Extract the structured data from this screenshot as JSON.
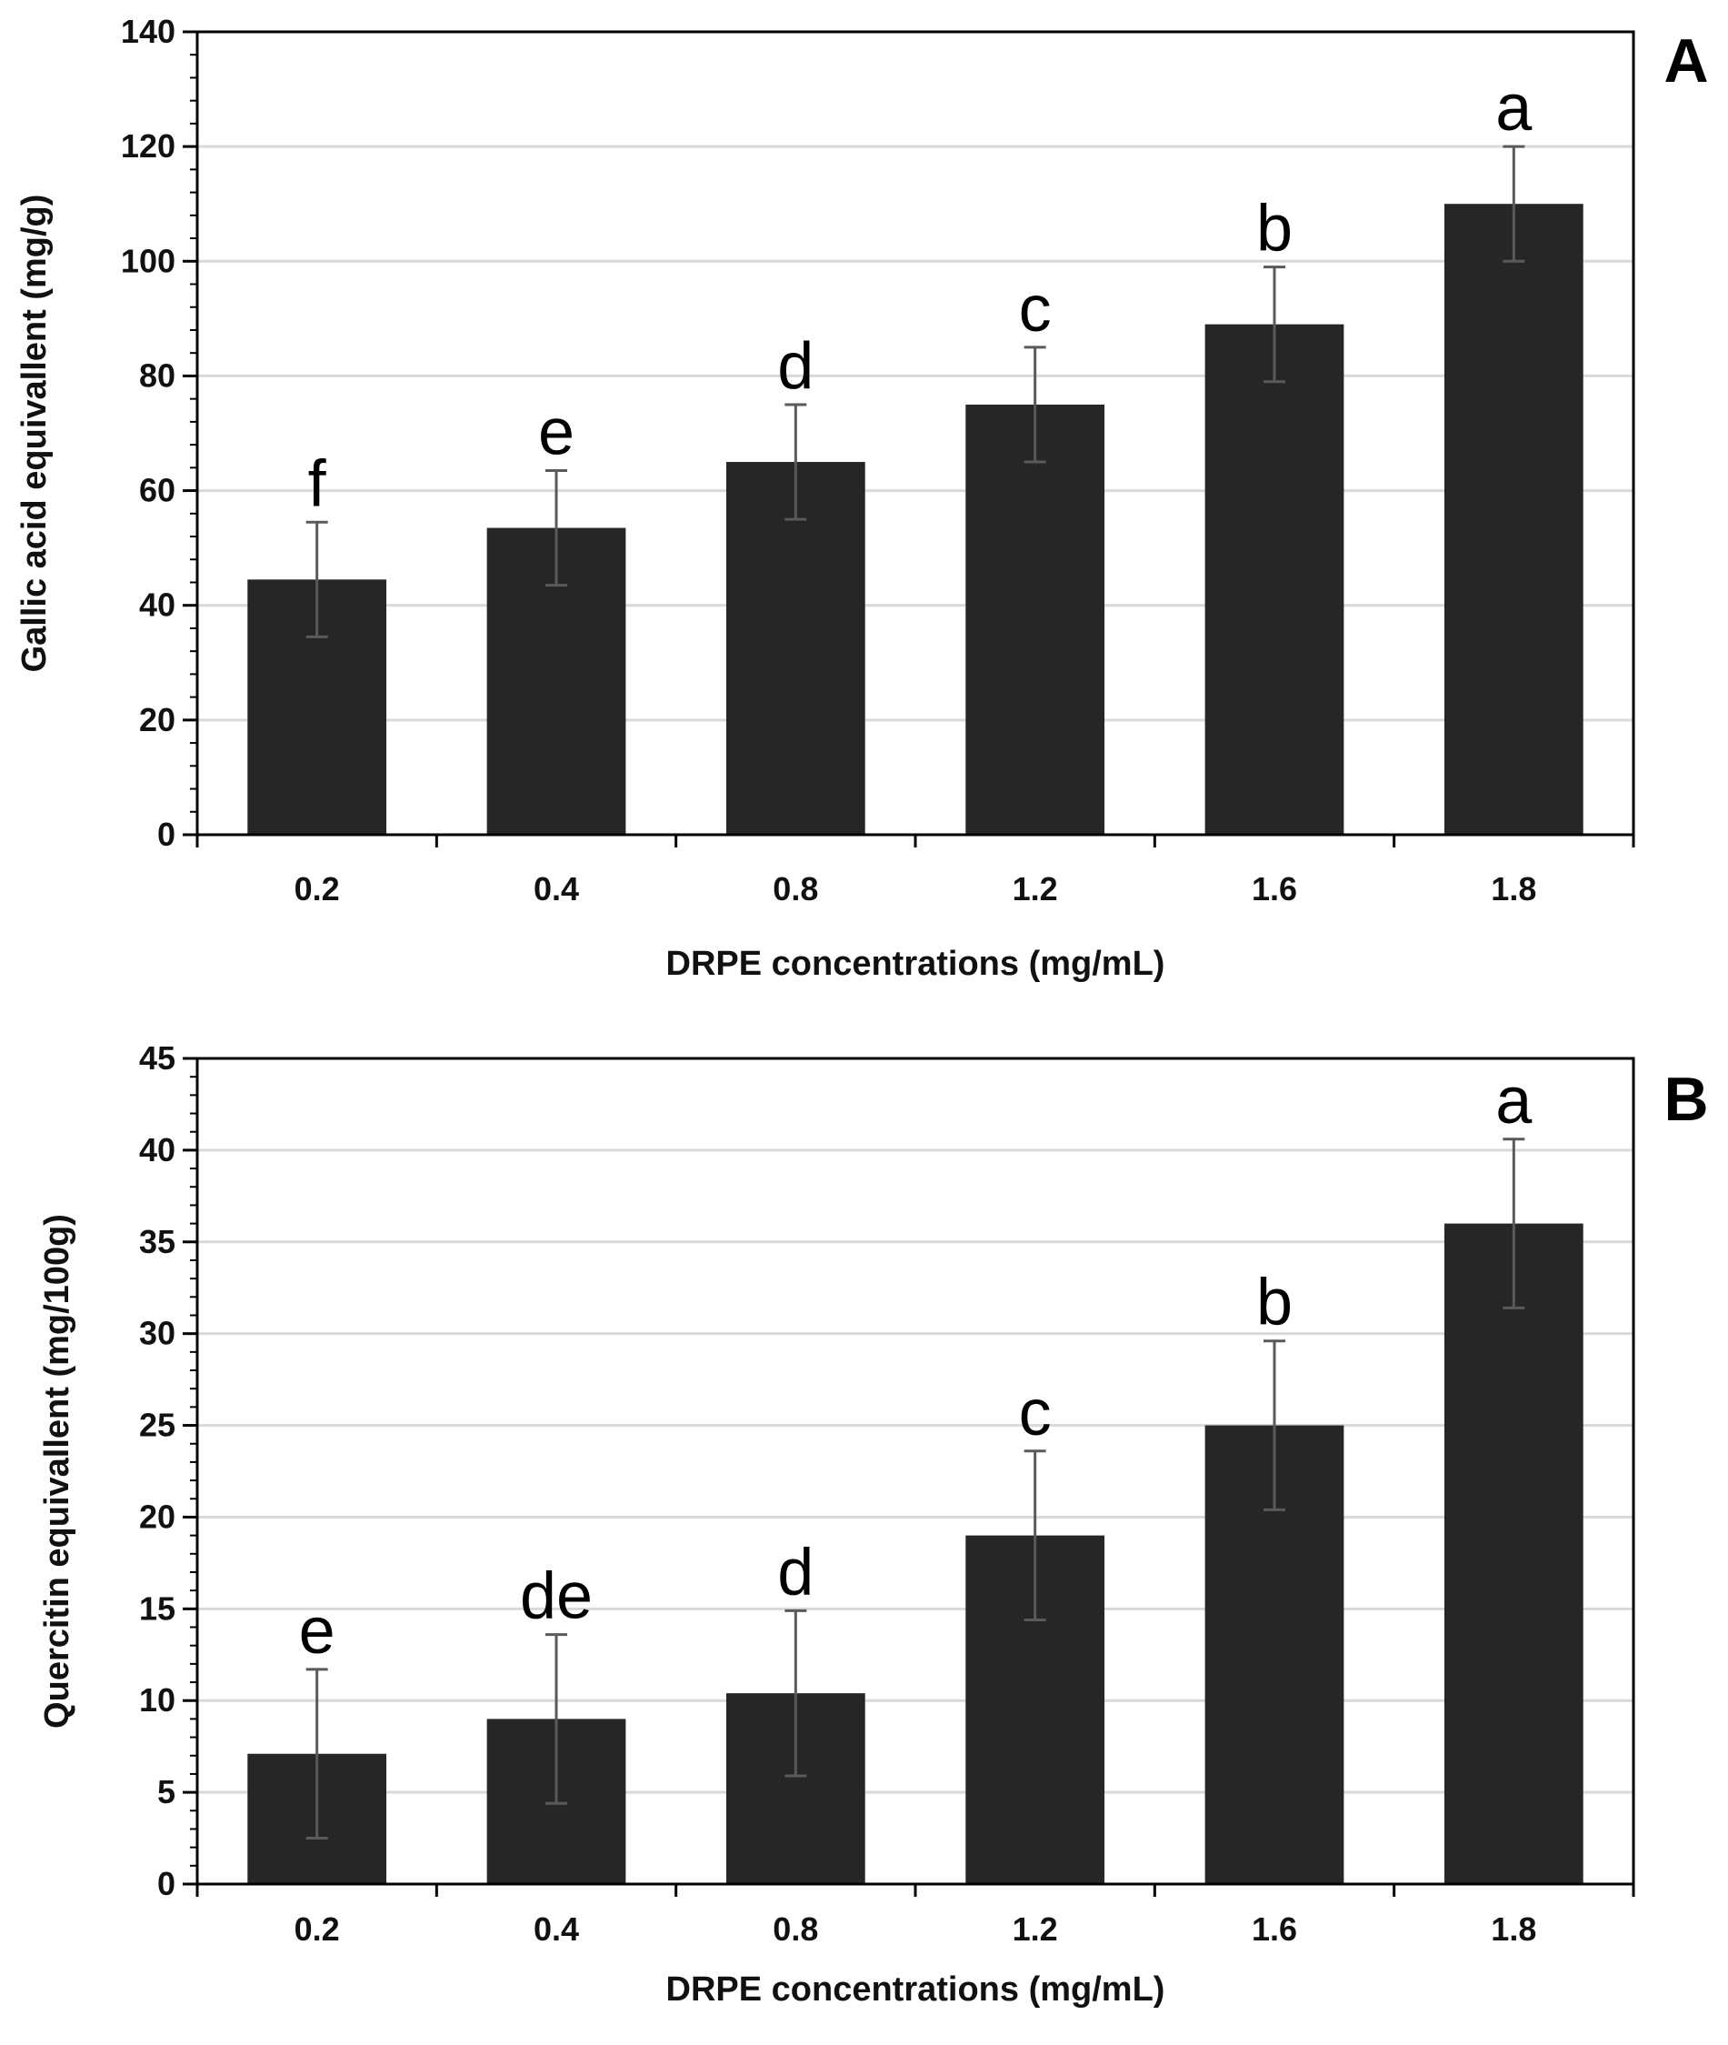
{
  "chart_data": [
    {
      "type": "bar",
      "panel_label": "A",
      "categories": [
        "0.2",
        "0.4",
        "0.8",
        "1.2",
        "1.6",
        "1.8"
      ],
      "values": [
        44.5,
        53.5,
        65,
        75,
        89,
        110
      ],
      "error": [
        10,
        10,
        10,
        10,
        10,
        10
      ],
      "significance": [
        "f",
        "e",
        "d",
        "c",
        "b",
        "a"
      ],
      "xlabel": "DRPE concentrations (mg/mL)",
      "ylabel": "Gallic acid equivallent (mg/g)",
      "ylim": [
        0,
        140
      ],
      "yticks": [
        0,
        20,
        40,
        60,
        80,
        100,
        120,
        140
      ],
      "minor_step": 4,
      "grid": true,
      "bar_color": "#262626",
      "error_color": "#5a5a5a",
      "grid_color": "#d9d9d9"
    },
    {
      "type": "bar",
      "panel_label": "B",
      "categories": [
        "0.2",
        "0.4",
        "0.8",
        "1.2",
        "1.6",
        "1.8"
      ],
      "values": [
        7.1,
        9,
        10.4,
        19,
        25,
        36
      ],
      "error": [
        4.6,
        4.6,
        4.5,
        4.6,
        4.6,
        4.6
      ],
      "significance": [
        "e",
        "de",
        "d",
        "c",
        "b",
        "a"
      ],
      "xlabel": "DRPE concentrations (mg/mL)",
      "ylabel": "Quercitin equivallent (mg/100g)",
      "ylim": [
        0,
        45
      ],
      "yticks": [
        0,
        5,
        10,
        15,
        20,
        25,
        30,
        35,
        40,
        45
      ],
      "minor_step": 1,
      "grid": true,
      "bar_color": "#262626",
      "error_color": "#5a5a5a",
      "grid_color": "#d9d9d9"
    }
  ]
}
